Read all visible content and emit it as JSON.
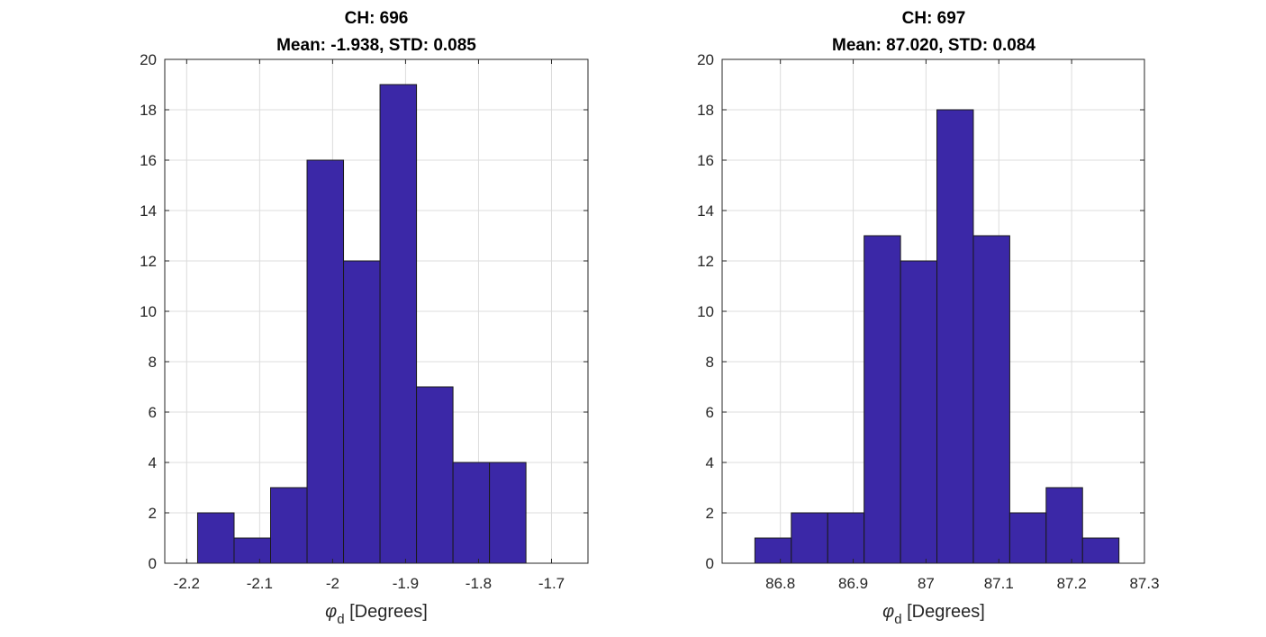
{
  "chart_data": [
    {
      "type": "bar",
      "title": "CH: 696",
      "subtitle": "Mean: -1.938, STD: 0.085",
      "xlabel_symbol": "φ",
      "xlabel_subscript": "d",
      "xlabel_unit": " [Degrees]",
      "ylabel": "",
      "xlim": [
        -2.23,
        -1.65
      ],
      "ylim": [
        0,
        20
      ],
      "xticks": [
        -2.2,
        -2.1,
        -2.0,
        -1.9,
        -1.8,
        -1.7
      ],
      "xtick_labels": [
        "-2.2",
        "-2.1",
        "-2",
        "-1.9",
        "-1.8",
        "-1.7"
      ],
      "yticks": [
        0,
        2,
        4,
        6,
        8,
        10,
        12,
        14,
        16,
        18,
        20
      ],
      "ytick_labels": [
        "0",
        "2",
        "4",
        "6",
        "8",
        "10",
        "12",
        "14",
        "16",
        "18",
        "20"
      ],
      "bin_edges": [
        -2.185,
        -2.135,
        -2.085,
        -2.035,
        -1.985,
        -1.935,
        -1.885,
        -1.835,
        -1.785,
        -1.735
      ],
      "values": [
        2,
        1,
        3,
        16,
        12,
        19,
        7,
        4,
        4
      ],
      "grid": true,
      "color": "#3b28a7"
    },
    {
      "type": "bar",
      "title": "CH: 697",
      "subtitle": "Mean: 87.020, STD: 0.084",
      "xlabel_symbol": "φ",
      "xlabel_subscript": "d",
      "xlabel_unit": " [Degrees]",
      "ylabel": "",
      "xlim": [
        86.72,
        87.3
      ],
      "ylim": [
        0,
        20
      ],
      "xticks": [
        86.8,
        86.9,
        87.0,
        87.1,
        87.2,
        87.3
      ],
      "xtick_labels": [
        "86.8",
        "86.9",
        "87",
        "87.1",
        "87.2",
        "87.3"
      ],
      "yticks": [
        0,
        2,
        4,
        6,
        8,
        10,
        12,
        14,
        16,
        18,
        20
      ],
      "ytick_labels": [
        "0",
        "2",
        "4",
        "6",
        "8",
        "10",
        "12",
        "14",
        "16",
        "18",
        "20"
      ],
      "bin_edges": [
        86.765,
        86.815,
        86.865,
        86.915,
        86.965,
        87.015,
        87.065,
        87.115,
        87.165,
        87.215,
        87.265
      ],
      "values": [
        1,
        2,
        2,
        13,
        12,
        18,
        13,
        2,
        3,
        1
      ],
      "grid": true,
      "color": "#3b28a7"
    }
  ]
}
